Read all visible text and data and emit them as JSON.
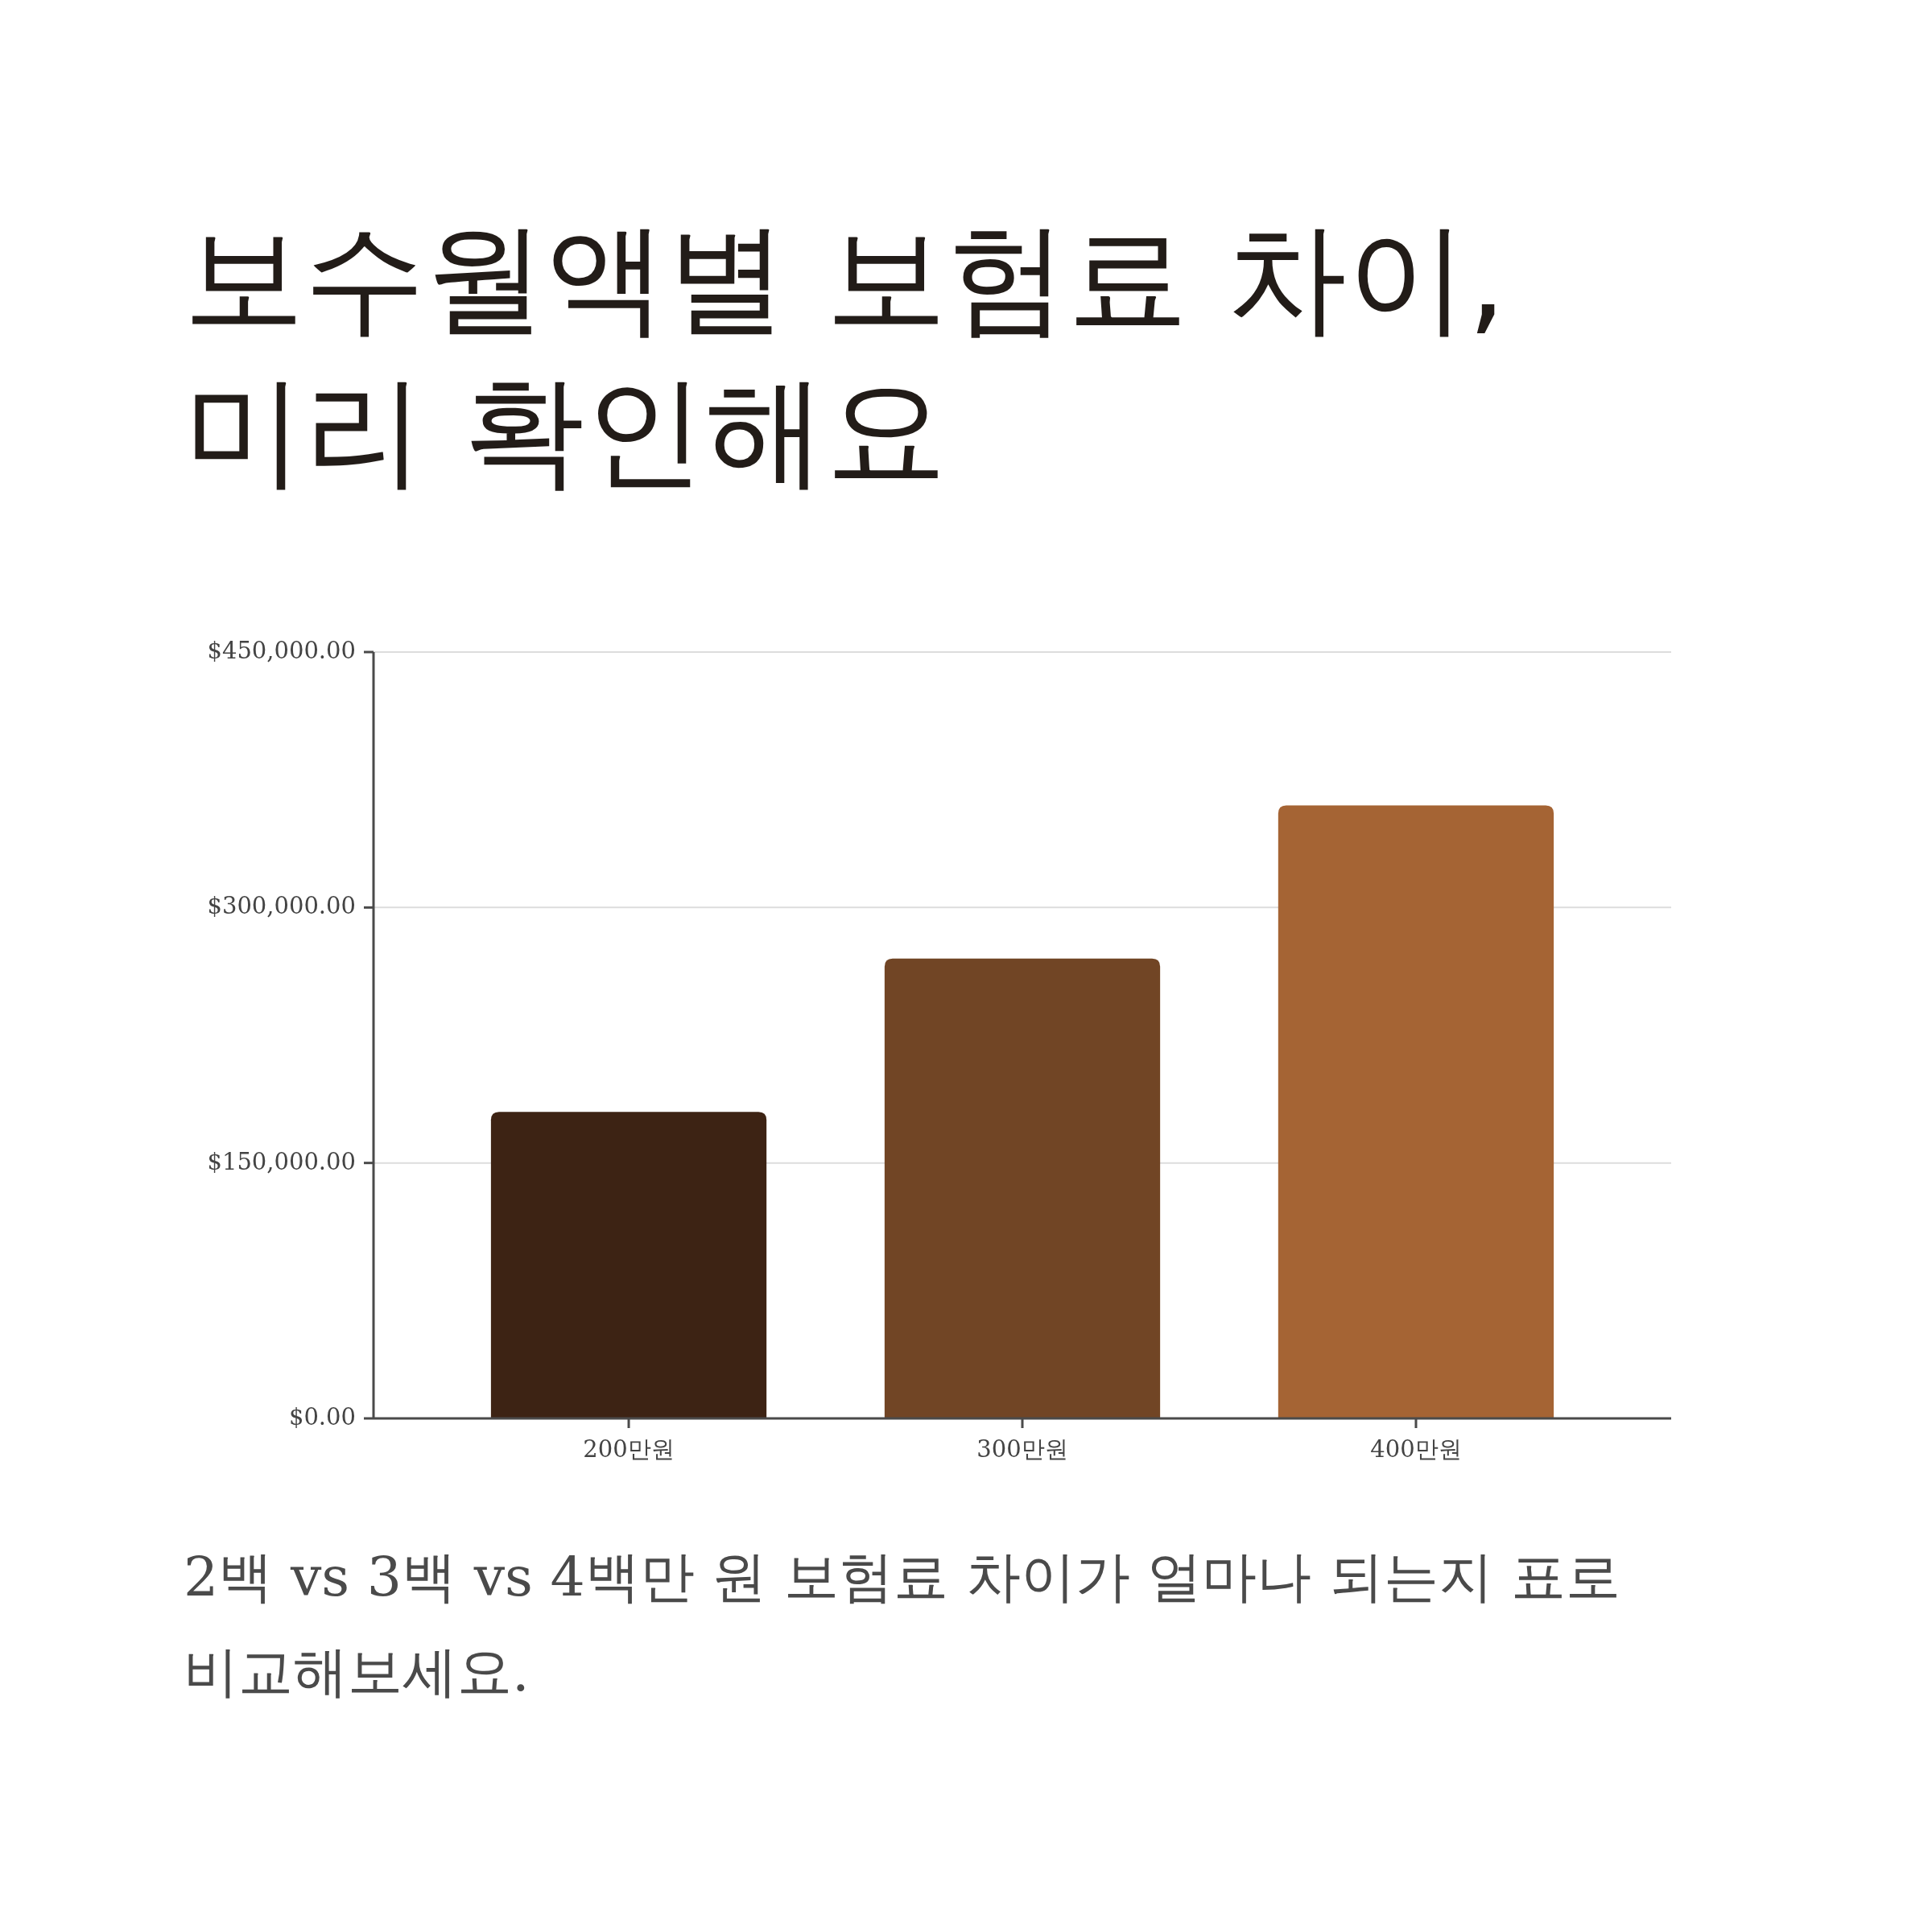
{
  "chart_data": {
    "type": "bar",
    "title": "보수월액별 보험료 차이, 미리 확인해요",
    "annotations": [
      "2백 vs 3백 vs 4백만 원 보험료 차이가 얼마나 되는지 표로 비교해보세요."
    ],
    "categories": [
      "200만원",
      "300만원",
      "400만원"
    ],
    "values": [
      180000,
      270000,
      360000
    ],
    "colors": [
      "#3d2314",
      "#714525",
      "#a56434"
    ],
    "ylim": [
      0,
      450000
    ],
    "yticks": [
      {
        "value": 0,
        "label": "$0.00"
      },
      {
        "value": 150000,
        "label": "$150,000.00"
      },
      {
        "value": 300000,
        "label": "$300,000.00"
      },
      {
        "value": 450000,
        "label": "$450,000.00"
      }
    ],
    "grid": "y"
  }
}
